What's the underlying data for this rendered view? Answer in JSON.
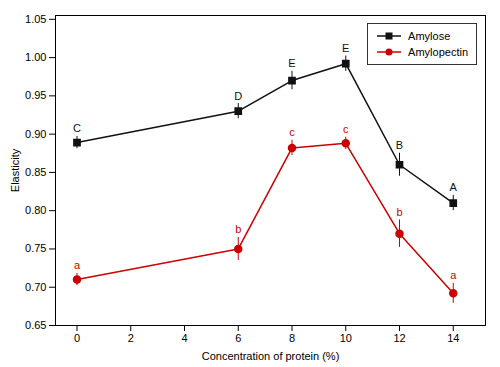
{
  "chart_data": {
    "type": "line",
    "xlabel": "Concentration of protein (%)",
    "ylabel": "Elasticity",
    "x": [
      0,
      6,
      8,
      10,
      12,
      14
    ],
    "series": [
      {
        "name": "Amylose",
        "color": "#111111",
        "marker": "square",
        "values": [
          0.889,
          0.93,
          0.97,
          0.992,
          0.86,
          0.81
        ],
        "errors": [
          0.008,
          0.01,
          0.012,
          0.01,
          0.015,
          0.01
        ],
        "annotations": [
          "C",
          "D",
          "E",
          "E",
          "B",
          "A"
        ]
      },
      {
        "name": "Amylopectin",
        "color": "#cc0000",
        "marker": "circle",
        "values": [
          0.71,
          0.75,
          0.882,
          0.888,
          0.77,
          0.692
        ],
        "errors": [
          0.008,
          0.015,
          0.01,
          0.008,
          0.018,
          0.013
        ],
        "annotations": [
          "a",
          "b",
          "c",
          "c",
          "b",
          "a"
        ]
      }
    ],
    "xlim": [
      -0.8,
      15.2
    ],
    "ylim": [
      0.65,
      1.055
    ],
    "xticks": [
      0,
      2,
      4,
      6,
      8,
      10,
      12,
      14
    ],
    "yticks": [
      0.65,
      {
        "value": 0.7,
        "label": "0.70"
      },
      0.75,
      {
        "value": 0.8,
        "label": "0.80"
      },
      0.85,
      {
        "value": 0.9,
        "label": "0.90"
      },
      0.95,
      {
        "value": 1,
        "label": "1.00"
      },
      1.05
    ],
    "legend": "upper right"
  }
}
